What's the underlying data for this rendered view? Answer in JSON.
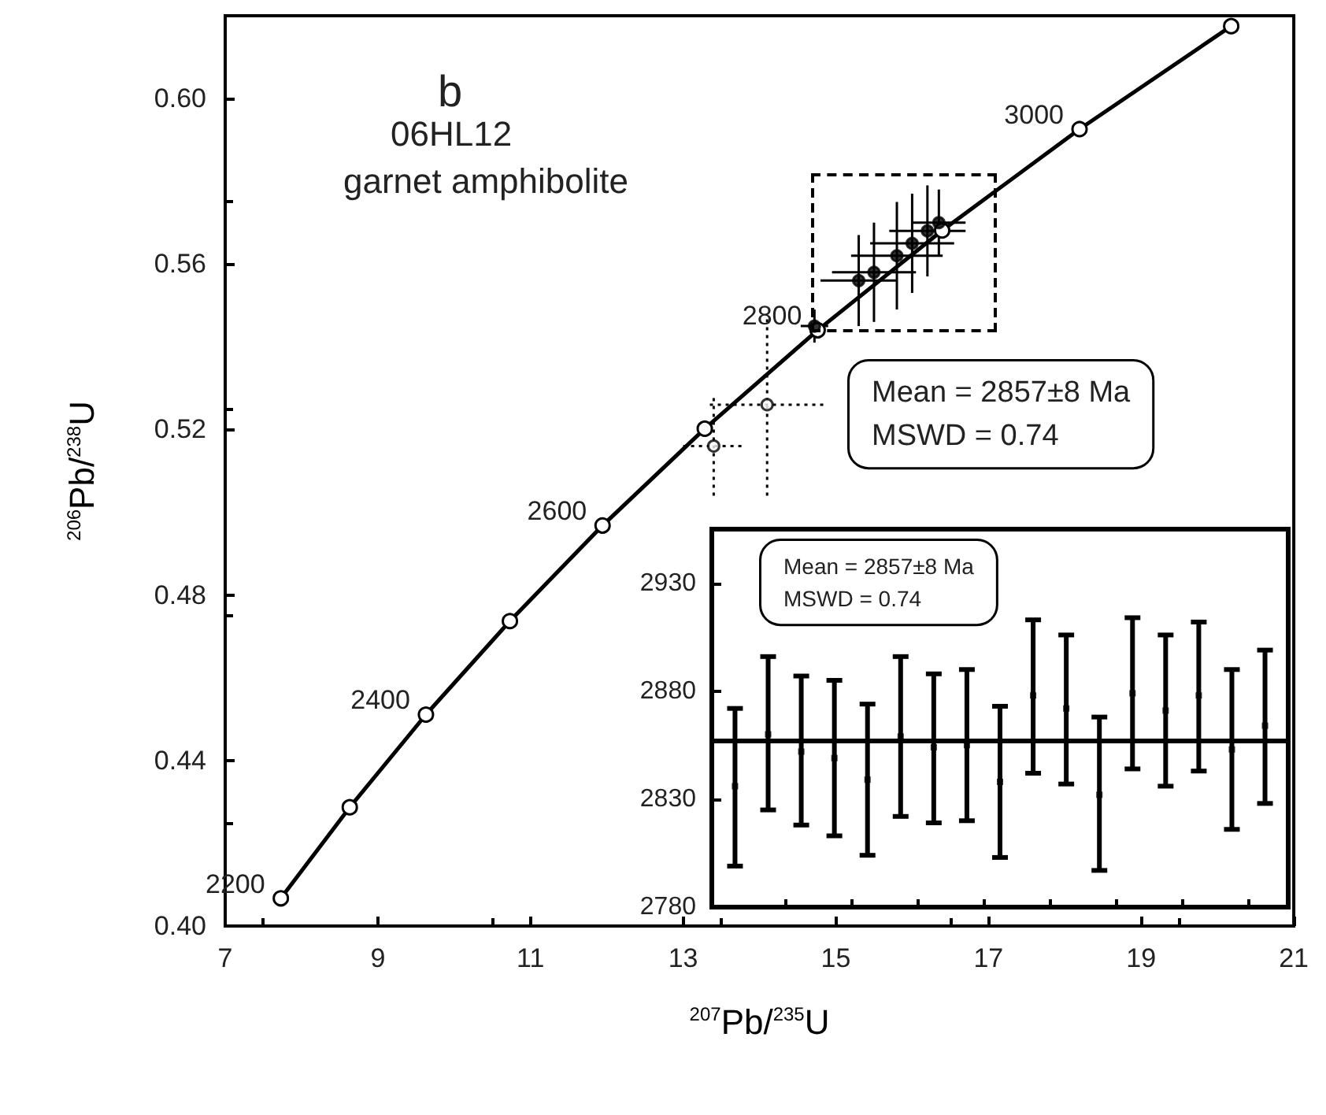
{
  "chart_data": [
    {
      "type": "line",
      "xlabel": "$^{207}$Pb/$^{235}$U",
      "ylabel": "$^{206}$Pb/$^{238}$U",
      "xlim": [
        7,
        21
      ],
      "xticks": [
        7,
        9,
        11,
        13,
        15,
        17,
        19,
        21
      ],
      "ylim": [
        0.4,
        0.62
      ],
      "yticks": [
        {
          "value": 0.4,
          "label": "0.40"
        },
        0.44,
        0.48,
        0.52,
        0.56,
        {
          "value": 0.6,
          "label": "0.60"
        }
      ],
      "grid": false,
      "marker": "circle",
      "annotations": [
        "b",
        "06HL12",
        "garnet amphibolite",
        "Mean = 2857±8 Ma",
        "MSWD = 0.74",
        {
          "text": "2200",
          "x": 7.729,
          "y": 0.4067
        },
        {
          "text": "2400",
          "x": 9.63,
          "y": 0.4511
        },
        {
          "text": "2600",
          "x": 11.944,
          "y": 0.4968
        },
        {
          "text": "2800",
          "x": 14.762,
          "y": 0.544
        },
        {
          "text": "3000",
          "x": 18.193,
          "y": 0.5926
        }
      ],
      "series": [
        {
          "color": "#000000",
          "line_style": "solid",
          "x": [
            7.729,
            8.632,
            9.63,
            10.73,
            11.944,
            13.283,
            14.762,
            16.393,
            18.193,
            20.18
          ],
          "values": [
            0.4067,
            0.4287,
            0.4511,
            0.4737,
            0.4968,
            0.5202,
            0.544,
            0.5681,
            0.5926,
            0.6175
          ]
        },
        {
          "type": "scatter",
          "color": "#000000",
          "line_style": "solid",
          "x": [
            14.72,
            15.3,
            15.5,
            15.8,
            16.0,
            16.2,
            16.35
          ],
          "values": [
            0.545,
            0.556,
            0.558,
            0.562,
            0.565,
            0.568,
            0.57
          ],
          "xerrors": [
            0.18,
            0.5,
            0.55,
            0.6,
            0.55,
            0.5,
            0.35
          ],
          "errors": [
            0.004,
            0.011,
            0.012,
            0.013,
            0.012,
            0.011,
            0.008
          ]
        },
        {
          "type": "scatter",
          "color": "#000000",
          "line_style": "dotted",
          "x": [
            13.4,
            14.1
          ],
          "values": [
            0.516,
            0.526
          ],
          "xerrors": [
            0.4,
            0.75
          ],
          "errors": [
            0.012,
            0.022
          ]
        }
      ]
    },
    {
      "type": "scatter",
      "marker": "square",
      "tick_labels": "y",
      "grid": false,
      "categories": [
        null,
        null,
        null,
        null,
        null,
        null,
        null,
        null,
        null,
        null,
        null,
        null,
        null,
        null,
        null,
        null,
        null
      ],
      "ylim": [
        2780,
        2955
      ],
      "yticks": [
        2780,
        2830,
        2880,
        2930
      ],
      "annotations": [
        "Mean = 2857±8 Ma",
        "MSWD = 0.74"
      ],
      "ref_lines": [
        {
          "axis": "y",
          "value": 2857,
          "color": "#000000"
        }
      ],
      "series": [
        {
          "color": "#000000",
          "values": [
            2836,
            2860,
            2852,
            2849,
            2839,
            2859,
            2854,
            2855,
            2838,
            2878,
            2872,
            2832,
            2879,
            2871,
            2878,
            2853,
            2864
          ],
          "errors": [
            [
              2799,
              2872
            ],
            [
              2825,
              2896
            ],
            [
              2818,
              2887
            ],
            [
              2813,
              2885
            ],
            [
              2804,
              2874
            ],
            [
              2822,
              2896
            ],
            [
              2819,
              2888
            ],
            [
              2820,
              2890
            ],
            [
              2803,
              2873
            ],
            [
              2842,
              2913
            ],
            [
              2837,
              2906
            ],
            [
              2797,
              2868
            ],
            [
              2844,
              2914
            ],
            [
              2836,
              2906
            ],
            [
              2843,
              2912
            ],
            [
              2816,
              2890
            ],
            [
              2828,
              2899
            ]
          ]
        }
      ]
    }
  ]
}
